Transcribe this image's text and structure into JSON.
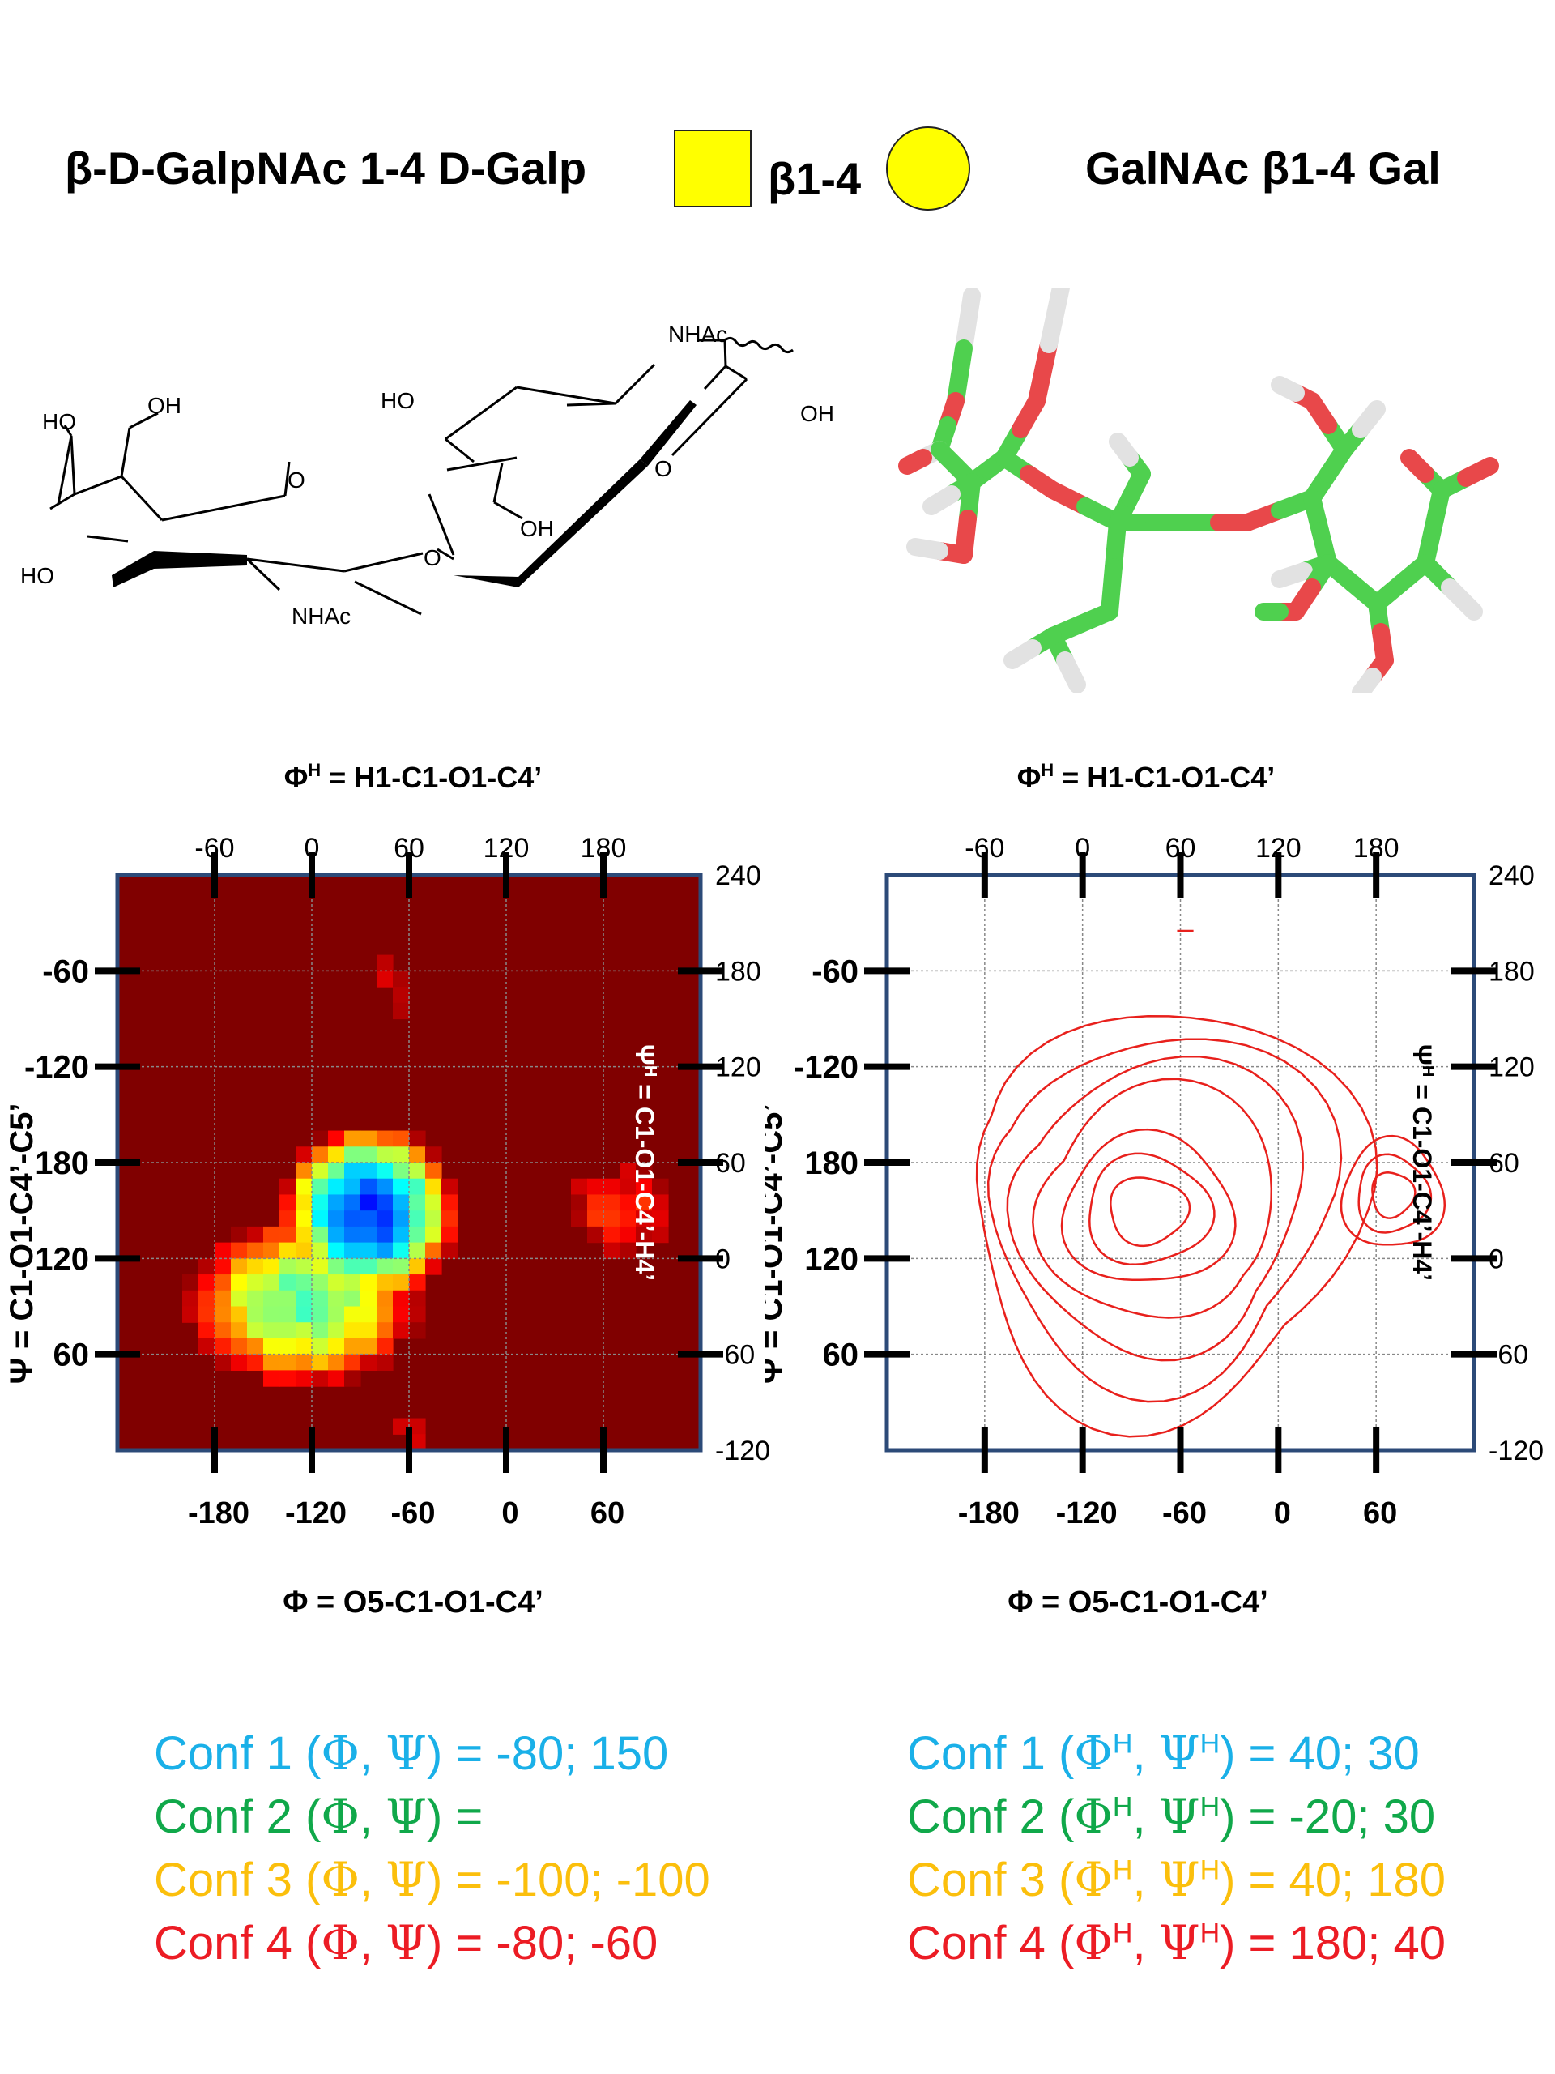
{
  "header": {
    "left_title": "β-D-GalpNAc 1-4 D-Galp",
    "linkage_label": "β1-4",
    "right_title": "GalNAc β1-4 Gal",
    "snfg": {
      "square_color": "#FFFF00",
      "circle_color": "#FFFF00"
    }
  },
  "structure_labels": {
    "ho_top": "HO",
    "oh_top": "OH",
    "ho_left": "HO",
    "ring_o1": "O",
    "nhac_bottom": "NHAc",
    "glyco_o": "O",
    "ho_right": "HO",
    "nhac_top": "NHAc",
    "oh_right": "OH",
    "ring_o2": "O",
    "oh_bottom": "OH"
  },
  "molecule": {
    "colors": {
      "carbon": "#4fd04f",
      "oxygen": "#e8484a",
      "hydrogen": "#e2e2e2"
    }
  },
  "panels": [
    {
      "top_axis_title": "ΦH = H1-C1-O1-C4’",
      "top_title_base": "Φ",
      "top_title_sup": "H",
      "top_title_rest": " = H1-C1-O1-C4’",
      "bottom_axis_title": "Φ = O5-C1-O1-C4’",
      "left_axis_title": "Ψ = C1-O1-C4’-C5’",
      "right_axis_title": "ΨH = C1-O1-C4’-H4’",
      "right_title_base": "Ψ",
      "right_title_sup": "H",
      "right_title_rest": " = C1-O1-C4’-H4’",
      "top_ticks": [
        "-60",
        "0",
        "60",
        "120",
        "180"
      ],
      "bottom_ticks": [
        "-180",
        "-120",
        "-60",
        "0",
        "60"
      ],
      "left_ticks": [
        "-60",
        "-120",
        "180",
        "120",
        "60"
      ],
      "right_ticks": [
        "240",
        "180",
        "120",
        "60",
        "0",
        "-60",
        "-120"
      ]
    },
    {
      "top_axis_title": "ΦH = H1-C1-O1-C4’",
      "top_title_base": "Φ",
      "top_title_sup": "H",
      "top_title_rest": " = H1-C1-O1-C4’",
      "bottom_axis_title": "Φ = O5-C1-O1-C4’",
      "left_axis_title": "Ψ = C1-O1-C4’-C5’",
      "right_axis_title": "ΨH = C1-O1-C4’-H4’",
      "right_title_base": "Ψ",
      "right_title_sup": "H",
      "right_title_rest": " = C1-O1-C4’-H4’",
      "top_ticks": [
        "-60",
        "0",
        "60",
        "120",
        "180"
      ],
      "bottom_ticks": [
        "-180",
        "-120",
        "-60",
        "0",
        "60"
      ],
      "left_ticks": [
        "-60",
        "-120",
        "180",
        "120",
        "60"
      ],
      "right_ticks": [
        "240",
        "180",
        "120",
        "60",
        "0",
        "-60",
        "-120"
      ]
    }
  ],
  "chart_data": [
    {
      "type": "heatmap",
      "x_axis_bottom": {
        "label": "Φ = O5-C1-O1-C4’",
        "range": [
          -240,
          120
        ]
      },
      "x_axis_top": {
        "label": "ΦH = H1-C1-O1-C4’",
        "range": [
          -120,
          240
        ]
      },
      "y_axis_left": {
        "label": "Ψ = C1-O1-C4’-C5’"
      },
      "y_axis_right": {
        "label": "ΨH = C1-O1-C4’-H4’",
        "range": [
          -120,
          240
        ]
      },
      "colormap": "jet (blue = low energy, red = high energy)",
      "grid": true,
      "blobs": [
        {
          "region": "global minimum",
          "phi": -80,
          "psiH": 30,
          "relative_level": 0.0
        },
        {
          "region": "extended low basin",
          "phi": -120,
          "psiH": -20,
          "relative_level": 0.45
        },
        {
          "region": "secondary basin",
          "phi": 70,
          "psiH": 30,
          "relative_level": 0.78
        },
        {
          "region": "upper spur",
          "phi": -70,
          "psiH": 170,
          "relative_level": 0.92
        }
      ]
    },
    {
      "type": "contour",
      "x_axis_bottom": {
        "label": "Φ = O5-C1-O1-C4’",
        "range": [
          -240,
          120
        ]
      },
      "x_axis_top": {
        "label": "ΦH = H1-C1-O1-C4’",
        "range": [
          -120,
          240
        ]
      },
      "y_axis_left": {
        "label": "Ψ = C1-O1-C4’-C5’"
      },
      "y_axis_right": {
        "label": "ΨH = C1-O1-C4’-H4’",
        "range": [
          -120,
          240
        ]
      },
      "line_color": "#e8201c",
      "grid": true,
      "contour_centers": [
        {
          "phi": -80,
          "psiH": 30,
          "levels": 7
        },
        {
          "phi": 70,
          "psiH": 40,
          "levels": 3
        }
      ]
    }
  ],
  "conformations": {
    "left": [
      {
        "prefix": "Conf 1 (",
        "sym1": "Φ",
        "sep": ", ",
        "sym2": "Ψ",
        "value": ") = -80; 150",
        "color": "#1ab0e8"
      },
      {
        "prefix": "Conf 2 (",
        "sym1": "Φ",
        "sep": ", ",
        "sym2": "Ψ",
        "value": ") =",
        "color": "#10a84a"
      },
      {
        "prefix": "Conf 3 (",
        "sym1": "Φ",
        "sep": ", ",
        "sym2": "Ψ",
        "value": ") = -100; -100",
        "color": "#fbbf0c"
      },
      {
        "prefix": "Conf 4 (",
        "sym1": "Φ",
        "sep": ", ",
        "sym2": "Ψ",
        "value": ") = -80; -60",
        "color": "#ec1c24"
      }
    ],
    "right": [
      {
        "prefix": "Conf 1 (",
        "sym1": "Φ",
        "sep": ", ",
        "sym2": "Ψ",
        "sup": "H",
        "value": ") =  40; 30",
        "color": "#1ab0e8"
      },
      {
        "prefix": "Conf 2 (",
        "sym1": "Φ",
        "sep": ", ",
        "sym2": "Ψ",
        "sup": "H",
        "value": ") = -20; 30",
        "color": "#10a84a"
      },
      {
        "prefix": "Conf 3 (",
        "sym1": "Φ",
        "sep": ", ",
        "sym2": "Ψ",
        "sup": "H",
        "value": ") =  40; 180",
        "color": "#fbbf0c"
      },
      {
        "prefix": "Conf 4 (",
        "sym1": "Φ",
        "sep": ", ",
        "sym2": "Ψ",
        "sup": "H",
        "value": ") = 180; 40",
        "color": "#ec1c24"
      }
    ]
  }
}
